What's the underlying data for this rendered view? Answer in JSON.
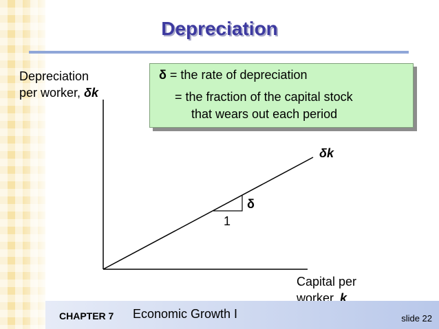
{
  "slide": {
    "title": "Depreciation",
    "y_axis_label_line1": "Depreciation",
    "y_axis_label_line2_text": "per worker, ",
    "y_axis_label_symbol": "δk",
    "x_axis_label_line1": "Capital per",
    "x_axis_label_line2_text": "worker, ",
    "x_axis_label_symbol": "k",
    "definition": {
      "symbol": "δ",
      "line1_text": " = the rate of depreciation",
      "line2": "= the fraction of the capital stock",
      "line3": "that wears out each period"
    },
    "line_label": "δk",
    "slope_label": "δ",
    "run_label": "1"
  },
  "footer": {
    "chapter": "CHAPTER 7",
    "topic": "Economic Growth I",
    "slide_number": "slide 22"
  },
  "colors": {
    "title": "#3d3aa0",
    "box_fill": "#c9f5c3",
    "rule": "#8fa6d8"
  }
}
